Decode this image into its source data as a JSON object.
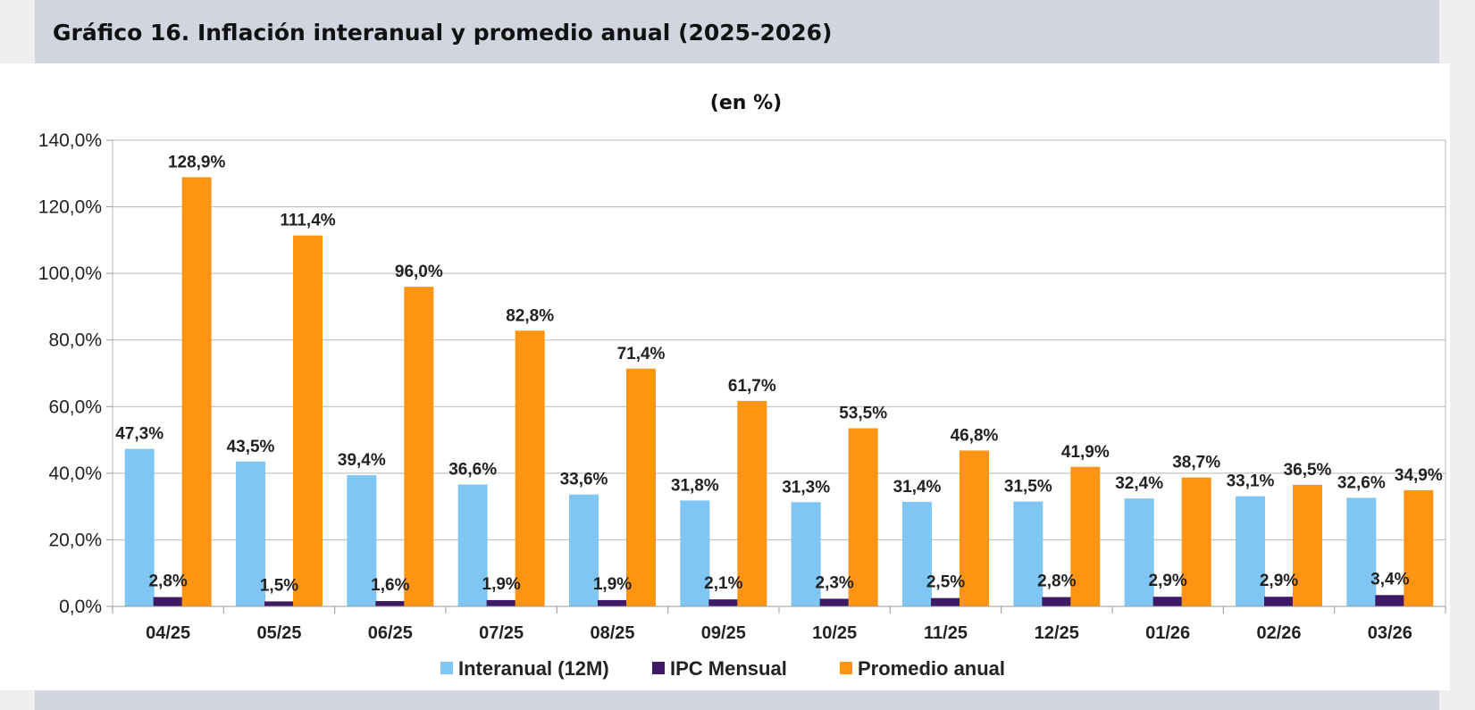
{
  "header": {
    "title": "Gráfico 16. Inflación interanual y promedio anual (2025-2026)"
  },
  "chart_data": {
    "type": "bar",
    "subtitle": "(en %)",
    "categories": [
      "04/25",
      "05/25",
      "06/25",
      "07/25",
      "08/25",
      "09/25",
      "10/25",
      "11/25",
      "12/25",
      "01/26",
      "02/26",
      "03/26"
    ],
    "series": [
      {
        "name": "Interanual (12M)",
        "color": "#7fc6f5",
        "values": [
          47.3,
          43.5,
          39.4,
          36.6,
          33.6,
          31.8,
          31.3,
          31.4,
          31.5,
          32.4,
          33.1,
          32.6
        ],
        "labels": [
          "47,3%",
          "43,5%",
          "39,4%",
          "36,6%",
          "33,6%",
          "31,8%",
          "31,3%",
          "31,4%",
          "31,5%",
          "32,4%",
          "33,1%",
          "32,6%"
        ]
      },
      {
        "name": "IPC Mensual",
        "color": "#3d1a63",
        "values": [
          2.8,
          1.5,
          1.6,
          1.9,
          1.9,
          2.1,
          2.3,
          2.5,
          2.8,
          2.9,
          2.9,
          3.4
        ],
        "labels": [
          "2,8%",
          "1,5%",
          "1,6%",
          "1,9%",
          "1,9%",
          "2,1%",
          "2,3%",
          "2,5%",
          "2,8%",
          "2,9%",
          "2,9%",
          "3,4%"
        ]
      },
      {
        "name": "Promedio anual",
        "color": "#ff9412",
        "values": [
          128.9,
          111.4,
          96.0,
          82.8,
          71.4,
          61.7,
          53.5,
          46.8,
          41.9,
          38.7,
          36.5,
          34.9
        ],
        "labels": [
          "128,9%",
          "111,4%",
          "96,0%",
          "82,8%",
          "71,4%",
          "61,7%",
          "53,5%",
          "46,8%",
          "41,9%",
          "38,7%",
          "36,5%",
          "34,9%"
        ]
      }
    ],
    "ylim": [
      0,
      140
    ],
    "yticks": [
      0,
      20,
      40,
      60,
      80,
      100,
      120,
      140
    ],
    "ytick_labels": [
      "0,0%",
      "20,0%",
      "40,0%",
      "60,0%",
      "80,0%",
      "100,0%",
      "120,0%",
      "140,0%"
    ],
    "grid": true,
    "legend_position": "bottom"
  }
}
